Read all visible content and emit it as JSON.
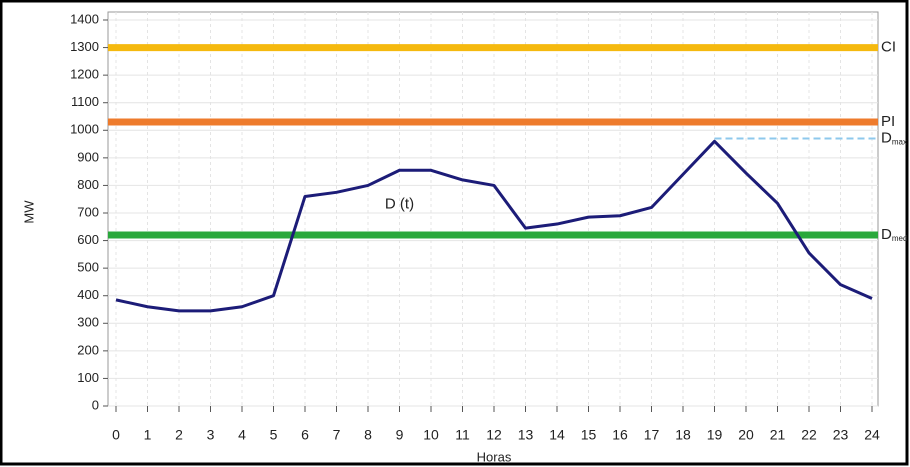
{
  "chart_data": {
    "type": "line",
    "ylabel": "MW",
    "xlabel": "Horas",
    "x": [
      0,
      1,
      2,
      3,
      4,
      5,
      6,
      7,
      8,
      9,
      10,
      11,
      12,
      13,
      14,
      15,
      16,
      17,
      18,
      19,
      20,
      21,
      22,
      23,
      24
    ],
    "series": [
      {
        "color": "#1c1c78",
        "values": [
          385,
          360,
          345,
          345,
          360,
          400,
          760,
          775,
          800,
          855,
          855,
          820,
          800,
          645,
          660,
          685,
          690,
          720,
          840,
          960,
          845,
          735,
          555,
          440,
          390
        ]
      }
    ],
    "xlim": [
      0,
      24
    ],
    "xticks": [
      0,
      1,
      2,
      3,
      4,
      5,
      6,
      7,
      8,
      9,
      10,
      11,
      12,
      13,
      14,
      15,
      16,
      17,
      18,
      19,
      20,
      21,
      22,
      23,
      24
    ],
    "ylim": [
      0,
      1400
    ],
    "yticks": [
      0,
      100,
      200,
      300,
      400,
      500,
      600,
      700,
      800,
      900,
      1000,
      1100,
      1200,
      1300,
      1400
    ],
    "grid": true,
    "reference_lines": [
      {
        "value": 1300,
        "color": "#f5b90f",
        "label": "CI"
      },
      {
        "value": 1030,
        "color": "#ee7b2c",
        "label": "PI"
      },
      {
        "value": 970,
        "color": "#8ec8ec",
        "dashed": true,
        "from": 19,
        "label": "D",
        "sub": "max"
      },
      {
        "value": 620,
        "color": "#2aa83c",
        "label": "D",
        "sub": "med"
      }
    ],
    "annotations": [
      {
        "text": "D (t)",
        "x": 9,
        "y": 730
      }
    ]
  }
}
